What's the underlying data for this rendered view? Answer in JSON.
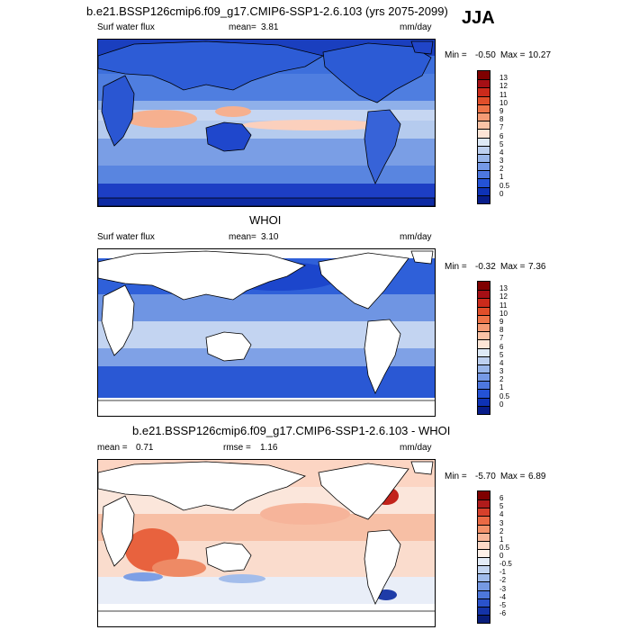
{
  "header": {
    "title": "b.e21.BSSP126cmip6.f09_g17.CMIP6-SSP1-2.6.103 (yrs 2075-2099)",
    "season": "JJA"
  },
  "panels": [
    {
      "id": "model",
      "title": "",
      "left_label": "Surf water flux",
      "stat1_label": "mean=",
      "stat1_value": "3.81",
      "stat2_label": "",
      "stat2_value": "",
      "units": "mm/day",
      "min_label": "Min =",
      "min_value": "-0.50",
      "max_label": "Max =",
      "max_value": "10.27",
      "colorbar": {
        "labels": [
          "13",
          "12",
          "11",
          "10",
          "9",
          "8",
          "7",
          "6",
          "5",
          "4",
          "3",
          "2",
          "1",
          "0.5",
          "0"
        ],
        "colors": [
          "#7f0000",
          "#a50f15",
          "#cb2a1b",
          "#e04e2a",
          "#ee7449",
          "#f59b75",
          "#fbc3a6",
          "#fde5d6",
          "#dde9f7",
          "#bdd0f0",
          "#99b6ea",
          "#7599e6",
          "#4d77df",
          "#2452d6",
          "#0e32b6",
          "#081d8a"
        ]
      }
    },
    {
      "id": "obs",
      "title": "WHOI",
      "left_label": "Surf water flux",
      "stat1_label": "mean=",
      "stat1_value": "3.10",
      "stat2_label": "",
      "stat2_value": "",
      "units": "mm/day",
      "min_label": "Min =",
      "min_value": "-0.32",
      "max_label": "Max =",
      "max_value": "7.36",
      "colorbar": {
        "labels": [
          "13",
          "12",
          "11",
          "10",
          "9",
          "8",
          "7",
          "6",
          "5",
          "4",
          "3",
          "2",
          "1",
          "0.5",
          "0"
        ],
        "colors": [
          "#7f0000",
          "#a50f15",
          "#cb2a1b",
          "#e04e2a",
          "#ee7449",
          "#f59b75",
          "#fbc3a6",
          "#fde5d6",
          "#dde9f7",
          "#bdd0f0",
          "#99b6ea",
          "#7599e6",
          "#4d77df",
          "#2452d6",
          "#0e32b6",
          "#081d8a"
        ]
      }
    },
    {
      "id": "diff",
      "title": "b.e21.BSSP126cmip6.f09_g17.CMIP6-SSP1-2.6.103 - WHOI",
      "left_label": "",
      "stat1_label": "mean =",
      "stat1_value": "0.71",
      "stat2_label": "rmse =",
      "stat2_value": "1.16",
      "units": "mm/day",
      "min_label": "Min =",
      "min_value": "-5.70",
      "max_label": "Max =",
      "max_value": "6.89",
      "colorbar": {
        "labels": [
          "6",
          "5",
          "4",
          "3",
          "2",
          "1",
          "0.5",
          "0",
          "-0.5",
          "-1",
          "-2",
          "-3",
          "-4",
          "-5",
          "-6"
        ],
        "colors": [
          "#7f0000",
          "#b01b1b",
          "#d6402b",
          "#ea6a45",
          "#f4926b",
          "#f9b79a",
          "#fcd8c6",
          "#fdf0e8",
          "#e3ecf8",
          "#c4d6f1",
          "#9fbbea",
          "#7599e3",
          "#4d77db",
          "#2a52cc",
          "#1433a8",
          "#081d7a"
        ]
      }
    }
  ]
}
